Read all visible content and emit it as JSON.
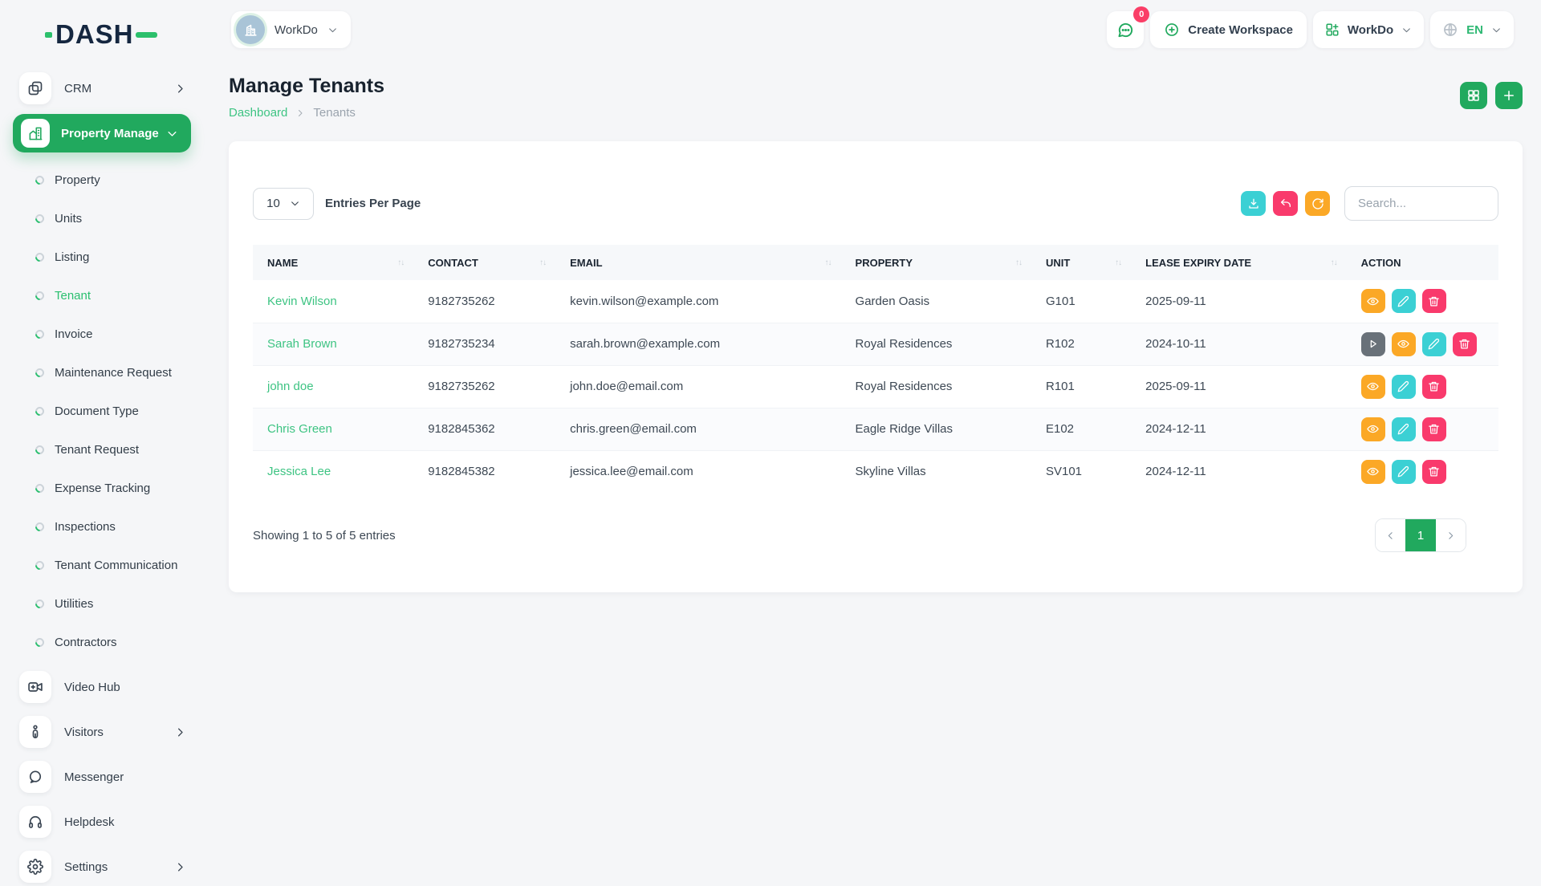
{
  "brand": {
    "name": "DASH"
  },
  "sidebar": {
    "crm_label": "CRM",
    "group_label": "Property Manage",
    "sub_items": [
      "Property",
      "Units",
      "Listing",
      "Tenant",
      "Invoice",
      "Maintenance Request",
      "Document Type",
      "Tenant Request",
      "Expense Tracking",
      "Inspections",
      "Tenant Communication",
      "Utilities",
      "Contractors"
    ],
    "active_sub_item": "Tenant",
    "bottom_items": [
      {
        "label": "Video Hub",
        "icon": "video-icon",
        "chevron": false
      },
      {
        "label": "Visitors",
        "icon": "visitor-icon",
        "chevron": true
      },
      {
        "label": "Messenger",
        "icon": "messenger-icon",
        "chevron": false
      },
      {
        "label": "Helpdesk",
        "icon": "headset-icon",
        "chevron": false
      },
      {
        "label": "Settings",
        "icon": "gear-icon",
        "chevron": true
      }
    ]
  },
  "topbar": {
    "workspace_name": "WorkDo",
    "chat_badge": "0",
    "create_workspace_label": "Create Workspace",
    "app_menu_label": "WorkDo",
    "language": "EN"
  },
  "page": {
    "title": "Manage Tenants",
    "breadcrumb_root": "Dashboard",
    "breadcrumb_current": "Tenants"
  },
  "controls": {
    "entries_value": "10",
    "entries_label": "Entries Per Page",
    "search_placeholder": "Search..."
  },
  "table": {
    "columns": [
      "NAME",
      "CONTACT",
      "EMAIL",
      "PROPERTY",
      "UNIT",
      "LEASE EXPIRY DATE",
      "ACTION"
    ],
    "rows": [
      {
        "name": "Kevin Wilson",
        "contact": "9182735262",
        "email": "kevin.wilson@example.com",
        "property": "Garden Oasis",
        "unit": "G101",
        "lease_expiry": "2025-09-11",
        "actions": [
          "view",
          "edit",
          "delete"
        ]
      },
      {
        "name": "Sarah Brown",
        "contact": "9182735234",
        "email": "sarah.brown@example.com",
        "property": "Royal Residences",
        "unit": "R102",
        "lease_expiry": "2024-10-11",
        "actions": [
          "play",
          "view",
          "edit",
          "delete"
        ]
      },
      {
        "name": "john doe",
        "contact": "9182735262",
        "email": "john.doe@email.com",
        "property": "Royal Residences",
        "unit": "R101",
        "lease_expiry": "2025-09-11",
        "actions": [
          "view",
          "edit",
          "delete"
        ]
      },
      {
        "name": "Chris Green",
        "contact": "9182845362",
        "email": "chris.green@email.com",
        "property": "Eagle Ridge Villas",
        "unit": "E102",
        "lease_expiry": "2024-12-11",
        "actions": [
          "view",
          "edit",
          "delete"
        ]
      },
      {
        "name": "Jessica Lee",
        "contact": "9182845382",
        "email": "jessica.lee@email.com",
        "property": "Skyline Villas",
        "unit": "SV101",
        "lease_expiry": "2024-12-11",
        "actions": [
          "view",
          "edit",
          "delete"
        ]
      }
    ]
  },
  "footer": {
    "summary": "Showing 1 to 5 of 5 entries",
    "page": "1"
  },
  "colors": {
    "primary_green": "#21a95e",
    "link_green": "#3ec483",
    "cyan": "#3bd0d4",
    "pink": "#f93a6c",
    "orange": "#fba826",
    "slate_gray": "#697179",
    "badge_pink": "#fa3e67",
    "avatar_blue": "#a9c4d7"
  }
}
